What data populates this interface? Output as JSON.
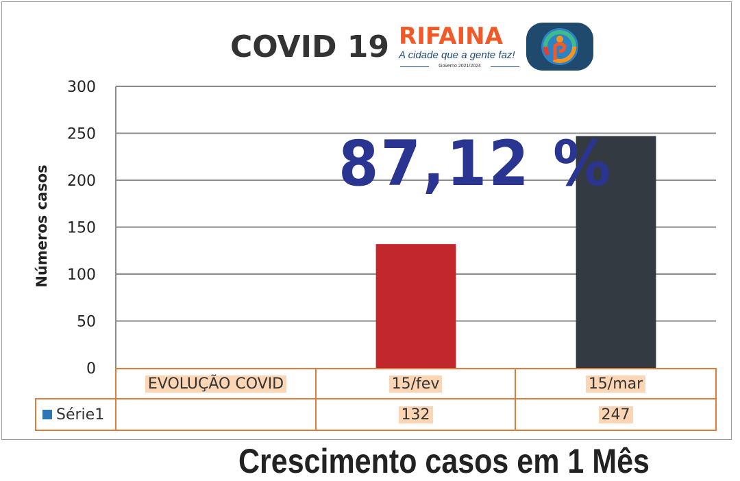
{
  "header": {
    "title": "COVID 19",
    "brand_name": "RIFAINA",
    "brand_slogan": "A cidade que a gente faz!",
    "brand_government": "Governo 2021/2024"
  },
  "highlight_text": "87,12 %",
  "caption": "Crescimento casos em 1 Mês",
  "colors": {
    "bar_fev": "#c1272d",
    "bar_mar": "#343a41",
    "percentage": "#2a3591",
    "table_border": "#e07b39",
    "cell_highlight": "#fcd5b4",
    "legend_swatch": "#2e75b6",
    "brand_orange": "#f05a28"
  },
  "chart_data": {
    "type": "bar",
    "categories": [
      "EVOLUÇÃO COVID",
      "15/fev",
      "15/mar"
    ],
    "series": [
      {
        "name": "Série1",
        "values": [
          null,
          132,
          247
        ]
      }
    ],
    "ylabel": "Números casos",
    "xlabel": "",
    "ylim": [
      0,
      300
    ],
    "yticks": [
      0,
      50,
      100,
      150,
      200,
      250,
      300
    ],
    "grid": true,
    "legend": "data-table",
    "table": {
      "header_row": [
        "EVOLUÇÃO COVID",
        "15/fev",
        "15/mar"
      ],
      "value_row": [
        "",
        "132",
        "247"
      ]
    }
  }
}
